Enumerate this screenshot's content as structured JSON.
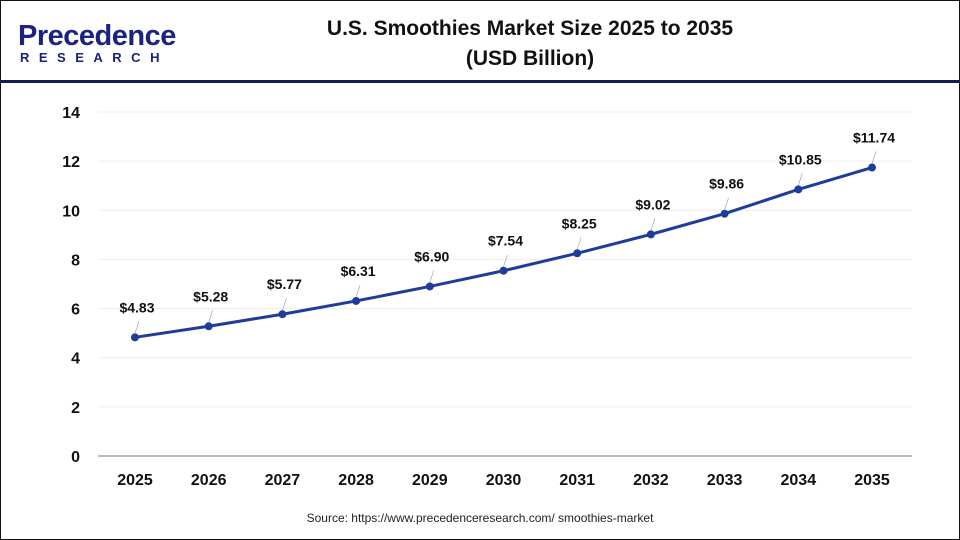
{
  "logo": {
    "line1": "Precedence",
    "line2": "RESEARCH"
  },
  "title_line1": "U.S. Smoothies Market Size 2025 to 2035",
  "title_line2": "(USD Billion)",
  "source": "Source: https://www.precedenceresearch.com/ smoothies-market",
  "colors": {
    "line": "#1f3c9c",
    "header_rule": "#141b4d",
    "grid": "#eeeeee"
  },
  "chart_data": {
    "type": "line",
    "title": "U.S. Smoothies Market Size 2025 to 2035 (USD Billion)",
    "categories": [
      "2025",
      "2026",
      "2027",
      "2028",
      "2029",
      "2030",
      "2031",
      "2032",
      "2033",
      "2034",
      "2035"
    ],
    "values": [
      4.83,
      5.28,
      5.77,
      6.31,
      6.9,
      7.54,
      8.25,
      9.02,
      9.86,
      10.85,
      11.74
    ],
    "data_labels": [
      "$4.83",
      "$5.28",
      "$5.77",
      "$6.31",
      "$6.90",
      "$7.54",
      "$8.25",
      "$9.02",
      "$9.86",
      "$10.85",
      "$11.74"
    ],
    "yticks": [
      "0",
      "2",
      "4",
      "6",
      "8",
      "10",
      "12",
      "14"
    ],
    "ylim": [
      0,
      14
    ],
    "xlabel": "",
    "ylabel": "",
    "grid": true,
    "legend": "none"
  }
}
